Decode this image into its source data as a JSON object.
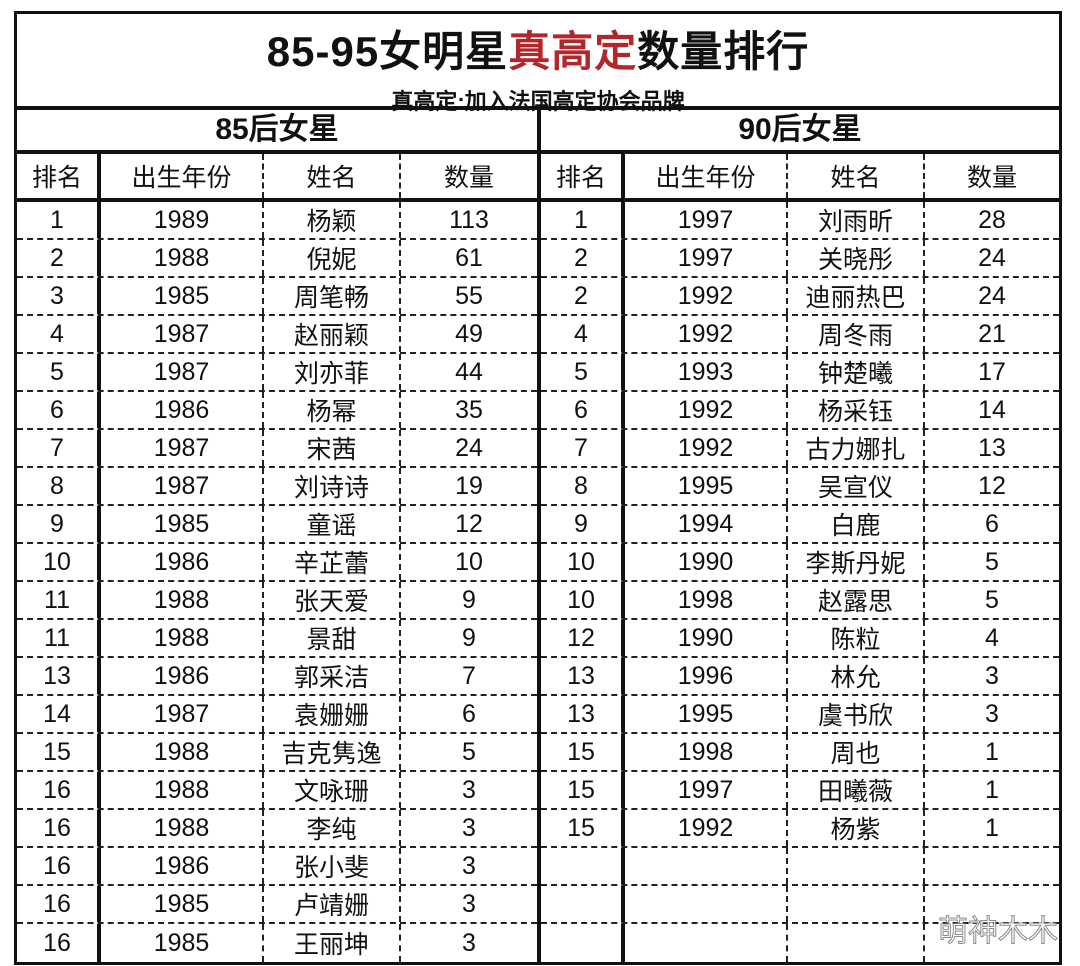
{
  "title": {
    "part1": "85-95女明星",
    "highlight": "真高定",
    "part2": "数量排行",
    "highlight_color": "#b3262a"
  },
  "subtitle": "真高定:加入法国高定协会品牌",
  "columns": [
    "排名",
    "出生年份",
    "姓名",
    "数量"
  ],
  "sections": [
    {
      "title": "85后女星",
      "rows": [
        [
          "1",
          "1989",
          "杨颖",
          "113"
        ],
        [
          "2",
          "1988",
          "倪妮",
          "61"
        ],
        [
          "3",
          "1985",
          "周笔畅",
          "55"
        ],
        [
          "4",
          "1987",
          "赵丽颖",
          "49"
        ],
        [
          "5",
          "1987",
          "刘亦菲",
          "44"
        ],
        [
          "6",
          "1986",
          "杨幂",
          "35"
        ],
        [
          "7",
          "1987",
          "宋茜",
          "24"
        ],
        [
          "8",
          "1987",
          "刘诗诗",
          "19"
        ],
        [
          "9",
          "1985",
          "童谣",
          "12"
        ],
        [
          "10",
          "1986",
          "辛芷蕾",
          "10"
        ],
        [
          "11",
          "1988",
          "张天爱",
          "9"
        ],
        [
          "11",
          "1988",
          "景甜",
          "9"
        ],
        [
          "13",
          "1986",
          "郭采洁",
          "7"
        ],
        [
          "14",
          "1987",
          "袁姗姗",
          "6"
        ],
        [
          "15",
          "1988",
          "吉克隽逸",
          "5"
        ],
        [
          "16",
          "1988",
          "文咏珊",
          "3"
        ],
        [
          "16",
          "1988",
          "李纯",
          "3"
        ],
        [
          "16",
          "1986",
          "张小斐",
          "3"
        ],
        [
          "16",
          "1985",
          "卢靖姗",
          "3"
        ],
        [
          "16",
          "1985",
          "王丽坤",
          "3"
        ]
      ]
    },
    {
      "title": "90后女星",
      "rows": [
        [
          "1",
          "1997",
          "刘雨昕",
          "28"
        ],
        [
          "2",
          "1997",
          "关晓彤",
          "24"
        ],
        [
          "2",
          "1992",
          "迪丽热巴",
          "24"
        ],
        [
          "4",
          "1992",
          "周冬雨",
          "21"
        ],
        [
          "5",
          "1993",
          "钟楚曦",
          "17"
        ],
        [
          "6",
          "1992",
          "杨采钰",
          "14"
        ],
        [
          "7",
          "1992",
          "古力娜扎",
          "13"
        ],
        [
          "8",
          "1995",
          "吴宣仪",
          "12"
        ],
        [
          "9",
          "1994",
          "白鹿",
          "6"
        ],
        [
          "10",
          "1990",
          "李斯丹妮",
          "5"
        ],
        [
          "10",
          "1998",
          "赵露思",
          "5"
        ],
        [
          "12",
          "1990",
          "陈粒",
          "4"
        ],
        [
          "13",
          "1996",
          "林允",
          "3"
        ],
        [
          "13",
          "1995",
          "虞书欣",
          "3"
        ],
        [
          "15",
          "1998",
          "周也",
          "1"
        ],
        [
          "15",
          "1997",
          "田曦薇",
          "1"
        ],
        [
          "15",
          "1992",
          "杨紫",
          "1"
        ],
        [
          "",
          "",
          "",
          ""
        ],
        [
          "",
          "",
          "",
          ""
        ],
        [
          "",
          "",
          "",
          ""
        ]
      ]
    }
  ],
  "watermark": "萌神木木"
}
